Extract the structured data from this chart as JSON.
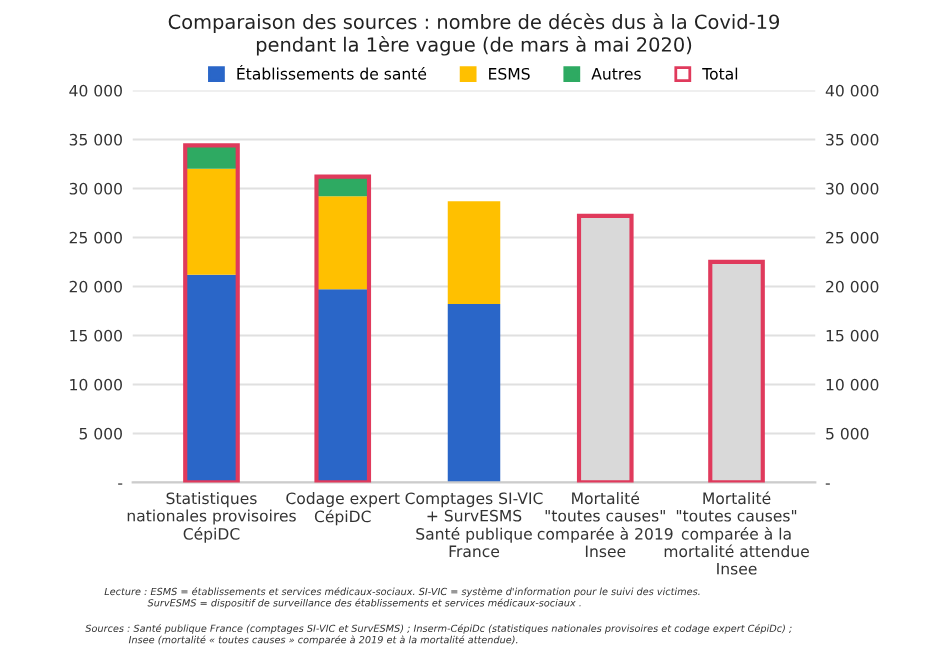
{
  "chart_data": {
    "type": "bar",
    "stacked": true,
    "title": "Comparaison des sources : nombre de décès dus à la Covid-19\npendant la 1ère vague (de mars à mai 2020)",
    "categories": [
      "Statistiques\nnationales provisoires\nCépiDC",
      "Codage expert\nCépiDC",
      "Comptages SI-VIC\n+ SurvESMS\nSanté publique\nFrance",
      "Mortalité\n\"toutes causes\"\ncomparée à 2019\nInsee",
      "Mortalité\n\"toutes causes\"\ncomparée à la\nmortalité attendue\nInsee"
    ],
    "series": [
      {
        "name": "Établissements de santé",
        "color": "#2a66c8",
        "values": [
          21200,
          19700,
          18200,
          null,
          null
        ]
      },
      {
        "name": "ESMS",
        "color": "#ffc000",
        "values": [
          10800,
          9500,
          10500,
          null,
          null
        ]
      },
      {
        "name": "Autres",
        "color": "#2eaa62",
        "values": [
          2400,
          2000,
          null,
          null,
          null
        ]
      },
      {
        "name": "Total",
        "color": "#e03a5c",
        "axis": "y2",
        "values": [
          34400,
          31200,
          null,
          27200,
          22500
        ],
        "colors": [
          null,
          null,
          null,
          "#d9d9d9",
          "#d9d9d9"
        ]
      }
    ],
    "ylim": [
      0,
      40000
    ],
    "yticks": [
      {
        "value": 0,
        "label": "-"
      },
      {
        "value": 5000,
        "label": "5 000"
      },
      {
        "value": 10000,
        "label": "10 000"
      },
      {
        "value": 15000,
        "label": "15 000"
      },
      {
        "value": 20000,
        "label": "20 000"
      },
      {
        "value": 25000,
        "label": "25 000"
      },
      {
        "value": 30000,
        "label": "30 000"
      },
      {
        "value": 35000,
        "label": "35 000"
      },
      {
        "value": 40000,
        "label": "40 000"
      }
    ],
    "y2lim": [
      0,
      40000
    ],
    "y2ticks": [
      {
        "value": 0,
        "label": "-"
      },
      {
        "value": 5000,
        "label": "5 000"
      },
      {
        "value": 10000,
        "label": "10 000"
      },
      {
        "value": 15000,
        "label": "15 000"
      },
      {
        "value": 20000,
        "label": "20 000"
      },
      {
        "value": 25000,
        "label": "25 000"
      },
      {
        "value": 30000,
        "label": "30 000"
      },
      {
        "value": 35000,
        "label": "35 000"
      },
      {
        "value": 40000,
        "label": "40 000"
      }
    ],
    "grid": "y",
    "legend": "top",
    "annotations": [
      "Lecture : ESMS = établissements et services médicaux-sociaux. SI-VIC = système d'information pour le suivi des victimes.\n              SurvESMS = dispositif de surveillance des établissements et services médicaux-sociaux .",
      "Sources : Santé publique France (comptages SI-VIC et SurvESMS) ; Inserm-CépiDc (statistiques nationales provisoires et codage expert CépiDc) ;\n              Insee (mortalité « toutes causes » comparée à 2019 et à la mortalité attendue)."
    ]
  }
}
